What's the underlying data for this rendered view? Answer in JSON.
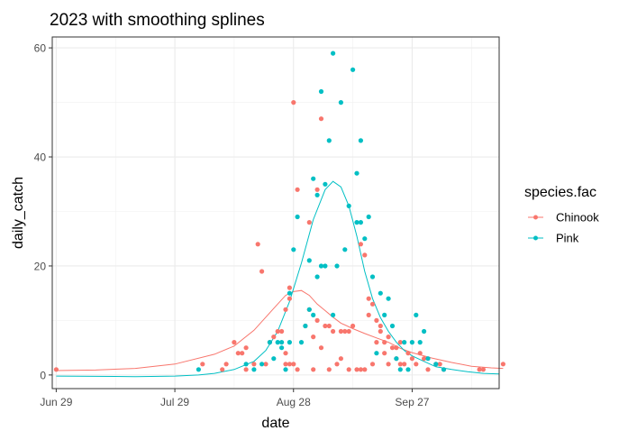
{
  "chart_data": {
    "type": "scatter",
    "title": "2023 with smoothing splines",
    "xlabel": "date",
    "ylabel": "daily_catch",
    "x_ticks": [
      {
        "label": "Jun 29",
        "day": 0
      },
      {
        "label": "Jul 29",
        "day": 30
      },
      {
        "label": "Aug 28",
        "day": 60
      },
      {
        "label": "Sep 27",
        "day": 90
      }
    ],
    "xlim": [
      "2023-06-28",
      "2023-10-19"
    ],
    "y_ticks": [
      0,
      20,
      40,
      60
    ],
    "ylim": [
      -2.5,
      62
    ],
    "grid": true,
    "legend": {
      "title": "species.fac",
      "position": "right"
    },
    "series": [
      {
        "name": "Chinook",
        "color": "#F8766D",
        "points": [
          [
            0,
            1
          ],
          [
            37,
            2
          ],
          [
            42,
            1
          ],
          [
            43,
            2
          ],
          [
            45,
            6
          ],
          [
            46,
            4
          ],
          [
            47,
            4
          ],
          [
            48,
            5
          ],
          [
            48,
            1
          ],
          [
            50,
            2
          ],
          [
            51,
            24
          ],
          [
            52,
            19
          ],
          [
            53,
            2
          ],
          [
            54,
            6
          ],
          [
            55,
            7
          ],
          [
            56,
            8
          ],
          [
            57,
            8
          ],
          [
            58,
            12
          ],
          [
            58,
            2
          ],
          [
            58,
            4
          ],
          [
            59,
            14
          ],
          [
            59,
            16
          ],
          [
            59,
            2
          ],
          [
            60,
            50
          ],
          [
            60,
            2
          ],
          [
            61,
            34
          ],
          [
            61,
            1
          ],
          [
            63,
            9
          ],
          [
            64,
            28
          ],
          [
            64,
            12
          ],
          [
            65,
            1
          ],
          [
            65,
            7
          ],
          [
            66,
            34
          ],
          [
            66,
            10
          ],
          [
            67,
            47
          ],
          [
            67,
            5
          ],
          [
            68,
            9
          ],
          [
            69,
            9
          ],
          [
            69,
            1
          ],
          [
            70,
            8
          ],
          [
            71,
            2
          ],
          [
            72,
            3
          ],
          [
            72,
            8
          ],
          [
            73,
            8
          ],
          [
            74,
            8
          ],
          [
            74,
            1
          ],
          [
            75,
            9
          ],
          [
            76,
            1
          ],
          [
            77,
            24
          ],
          [
            77,
            1
          ],
          [
            78,
            22
          ],
          [
            78,
            1
          ],
          [
            79,
            14
          ],
          [
            79,
            11
          ],
          [
            80,
            13
          ],
          [
            80,
            2
          ],
          [
            81,
            10
          ],
          [
            81,
            6
          ],
          [
            82,
            9
          ],
          [
            82,
            8
          ],
          [
            83,
            6
          ],
          [
            83,
            4
          ],
          [
            84,
            7
          ],
          [
            84,
            2
          ],
          [
            85,
            5
          ],
          [
            86,
            3
          ],
          [
            86,
            5
          ],
          [
            87,
            6
          ],
          [
            87,
            2
          ],
          [
            88,
            2
          ],
          [
            89,
            4
          ],
          [
            90,
            3
          ],
          [
            91,
            2
          ],
          [
            92,
            4
          ],
          [
            93,
            3
          ],
          [
            94,
            1
          ],
          [
            96,
            2
          ],
          [
            97,
            2
          ],
          [
            98,
            1
          ],
          [
            107,
            1
          ],
          [
            108,
            1
          ],
          [
            113,
            2
          ]
        ],
        "spline": [
          [
            0,
            0.8
          ],
          [
            10,
            0.9
          ],
          [
            20,
            1.2
          ],
          [
            30,
            2.0
          ],
          [
            40,
            3.8
          ],
          [
            45,
            5.3
          ],
          [
            50,
            8.2
          ],
          [
            55,
            12.2
          ],
          [
            58,
            14.6
          ],
          [
            60,
            15.3
          ],
          [
            62,
            15.5
          ],
          [
            64,
            14.6
          ],
          [
            66,
            13.0
          ],
          [
            68,
            11.8
          ],
          [
            70,
            10.6
          ],
          [
            72,
            9.5
          ],
          [
            75,
            8.5
          ],
          [
            78,
            7.6
          ],
          [
            81,
            6.8
          ],
          [
            84,
            6.0
          ],
          [
            87,
            4.9
          ],
          [
            90,
            4.1
          ],
          [
            95,
            3.1
          ],
          [
            100,
            2.3
          ],
          [
            105,
            1.6
          ],
          [
            110,
            1.3
          ],
          [
            113,
            1.2
          ]
        ]
      },
      {
        "name": "Pink",
        "color": "#00BFC4",
        "points": [
          [
            36,
            1
          ],
          [
            48,
            2
          ],
          [
            50,
            1
          ],
          [
            52,
            2
          ],
          [
            54,
            6
          ],
          [
            55,
            3
          ],
          [
            56,
            6
          ],
          [
            57,
            5
          ],
          [
            57,
            6
          ],
          [
            58,
            1
          ],
          [
            59,
            15
          ],
          [
            59,
            6
          ],
          [
            60,
            23
          ],
          [
            61,
            29
          ],
          [
            62,
            6
          ],
          [
            63,
            9
          ],
          [
            64,
            21
          ],
          [
            64,
            12
          ],
          [
            65,
            36
          ],
          [
            65,
            11
          ],
          [
            66,
            33
          ],
          [
            66,
            18
          ],
          [
            67,
            52
          ],
          [
            67,
            20
          ],
          [
            68,
            35
          ],
          [
            68,
            20
          ],
          [
            69,
            43
          ],
          [
            70,
            59
          ],
          [
            70,
            11
          ],
          [
            71,
            20
          ],
          [
            72,
            50
          ],
          [
            73,
            23
          ],
          [
            74,
            31
          ],
          [
            75,
            56
          ],
          [
            76,
            28
          ],
          [
            76,
            37
          ],
          [
            77,
            43
          ],
          [
            77,
            28
          ],
          [
            78,
            25
          ],
          [
            79,
            29
          ],
          [
            80,
            18
          ],
          [
            81,
            4
          ],
          [
            82,
            15
          ],
          [
            83,
            11
          ],
          [
            84,
            14
          ],
          [
            85,
            9
          ],
          [
            86,
            3
          ],
          [
            87,
            1
          ],
          [
            88,
            6
          ],
          [
            89,
            1
          ],
          [
            90,
            6
          ],
          [
            91,
            11
          ],
          [
            92,
            6
          ],
          [
            93,
            8
          ],
          [
            94,
            3
          ],
          [
            96,
            2
          ],
          [
            98,
            1
          ]
        ],
        "spline": [
          [
            0,
            -0.2
          ],
          [
            20,
            -0.3
          ],
          [
            30,
            -0.2
          ],
          [
            36,
            0.0
          ],
          [
            40,
            0.3
          ],
          [
            45,
            1.0
          ],
          [
            50,
            2.5
          ],
          [
            53,
            4.5
          ],
          [
            56,
            8.0
          ],
          [
            59,
            13.5
          ],
          [
            62,
            20.5
          ],
          [
            65,
            28.5
          ],
          [
            68,
            34.0
          ],
          [
            70,
            35.5
          ],
          [
            72,
            34.5
          ],
          [
            74,
            31.0
          ],
          [
            76,
            25.5
          ],
          [
            78,
            19.0
          ],
          [
            80,
            14.0
          ],
          [
            82,
            10.5
          ],
          [
            84,
            8.0
          ],
          [
            86,
            6.0
          ],
          [
            88,
            4.5
          ],
          [
            90,
            3.5
          ],
          [
            93,
            2.5
          ],
          [
            96,
            1.5
          ],
          [
            100,
            1.0
          ],
          [
            104,
            0.6
          ],
          [
            108,
            0.3
          ],
          [
            112,
            0.2
          ]
        ]
      }
    ]
  }
}
